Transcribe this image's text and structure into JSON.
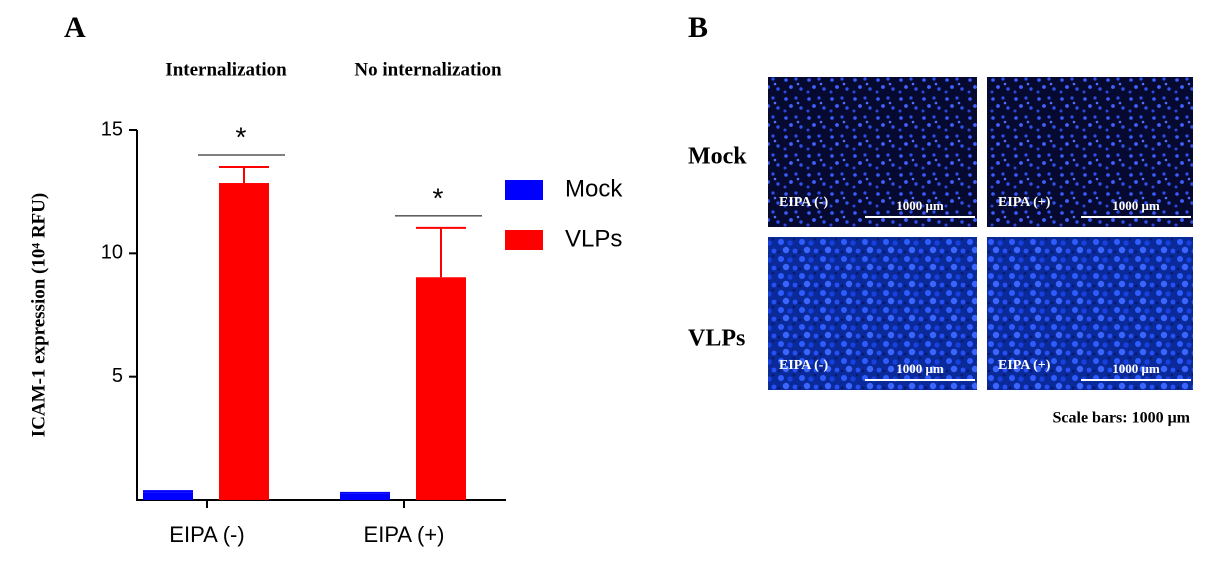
{
  "chart_data": {
    "type": "bar",
    "y_label": "ICAM-1 expression (10⁴ RFU)",
    "categories": [
      "EIPA (-)",
      "EIPA (+)"
    ],
    "group_labels": [
      "Internalization",
      "No internalization"
    ],
    "series": [
      {
        "name": "Mock",
        "color": "#0000ff",
        "values": [
          0.32,
          0.25
        ],
        "errors": [
          0.04,
          0.04
        ]
      },
      {
        "name": "VLPs",
        "color": "#ff0000",
        "values": [
          12.85,
          9.03
        ],
        "errors": [
          0.65,
          2.0
        ]
      }
    ],
    "annotations": [
      "*",
      "*"
    ],
    "ylim": [
      0,
      15
    ],
    "yticks": [
      5,
      10,
      15
    ],
    "grid": false,
    "legend": "right"
  },
  "panel_labels": [
    "A",
    "B"
  ],
  "micrographs": {
    "rows": [
      "Mock",
      "VLPs"
    ],
    "columns": [
      "EIPA (-)",
      "EIPA (+)"
    ],
    "scale_bar_label": "1000 μm",
    "caption": "Scale bars: 1000 μm"
  }
}
